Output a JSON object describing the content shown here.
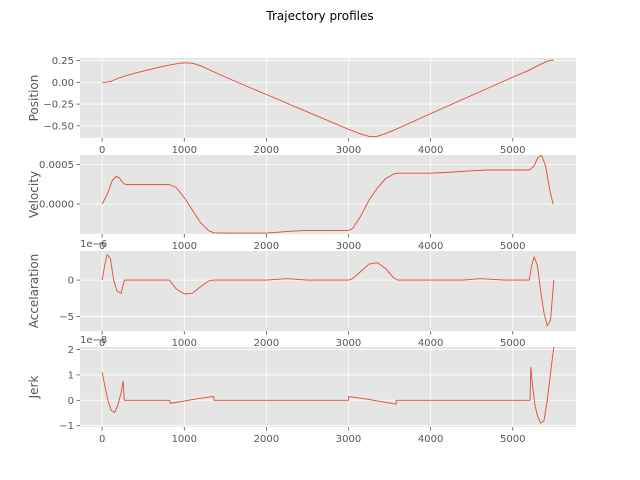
{
  "figure": {
    "title": "Trajectory profiles",
    "line_color": "#e24a33",
    "panel_background": "#e5e5e5",
    "grid_color": "#ffffff",
    "grid": true
  },
  "chart_data": [
    {
      "type": "line",
      "ylabel": "Position",
      "offset_label": "",
      "xlim": [
        -270,
        5770
      ],
      "ylim": [
        -0.64,
        0.28
      ],
      "xticks": [
        0,
        1000,
        2000,
        3000,
        4000,
        5000
      ],
      "xtick_labels": [
        "0",
        "1000",
        "2000",
        "3000",
        "4000",
        "5000"
      ],
      "yticks": [
        0.25,
        0.0,
        -0.25,
        -0.5
      ],
      "ytick_labels": [
        "0.25",
        "0.00",
        "−0.25",
        "−0.50"
      ],
      "series": [
        {
          "x": [
            0,
            50,
            100,
            200,
            300,
            500,
            700,
            850,
            950,
            1000,
            1050,
            1120,
            1200,
            1350,
            1600,
            2000,
            2500,
            3000,
            3150,
            3250,
            3300,
            3350,
            3450,
            3600,
            4000,
            4500,
            5000,
            5200,
            5300,
            5400,
            5450,
            5500
          ],
          "y": [
            0.0,
            0.002,
            0.01,
            0.05,
            0.08,
            0.13,
            0.175,
            0.205,
            0.22,
            0.224,
            0.225,
            0.215,
            0.19,
            0.125,
            0.02,
            -0.14,
            -0.34,
            -0.54,
            -0.595,
            -0.62,
            -0.625,
            -0.62,
            -0.59,
            -0.53,
            -0.36,
            -0.15,
            0.06,
            0.14,
            0.19,
            0.235,
            0.252,
            0.255
          ]
        }
      ]
    },
    {
      "type": "line",
      "ylabel": "Velocity",
      "offset_label": "",
      "xlim": [
        -270,
        5770
      ],
      "ylim": [
        -0.00038,
        0.00062
      ],
      "xticks": [
        0,
        1000,
        2000,
        3000,
        4000,
        5000
      ],
      "xtick_labels": [
        "0",
        "1000",
        "2000",
        "3000",
        "4000",
        "5000"
      ],
      "yticks": [
        0.0005,
        0.0
      ],
      "ytick_labels": [
        "0.0005",
        "0.0000"
      ],
      "series": [
        {
          "x": [
            0,
            60,
            120,
            170,
            210,
            250,
            290,
            350,
            500,
            700,
            820,
            900,
            1000,
            1100,
            1200,
            1300,
            1360,
            1500,
            2000,
            2300,
            2500,
            3000,
            3050,
            3150,
            3250,
            3350,
            3450,
            3550,
            3600,
            3800,
            4000,
            4200,
            4500,
            4700,
            5000,
            5200,
            5260,
            5300,
            5350,
            5400,
            5450,
            5490
          ],
          "y": [
            0.0,
            0.00012,
            0.00029,
            0.00035,
            0.00033,
            0.00027,
            0.000245,
            0.000245,
            0.000245,
            0.000245,
            0.000245,
            0.00021,
            8e-05,
            -8e-05,
            -0.00024,
            -0.00034,
            -0.000365,
            -0.000368,
            -0.000368,
            -0.000345,
            -0.000335,
            -0.000335,
            -0.00031,
            -0.00015,
            5e-05,
            0.0002,
            0.00032,
            0.00038,
            0.00039,
            0.00039,
            0.00039,
            0.0004,
            0.00042,
            0.00043,
            0.00043,
            0.00043,
            0.00048,
            0.00058,
            0.00062,
            0.00048,
            0.00018,
            0.0
          ]
        }
      ]
    },
    {
      "type": "line",
      "ylabel": "Accelaration",
      "offset_label": "1e−6",
      "xlim": [
        -270,
        5770
      ],
      "ylim": [
        -7.0,
        4.0
      ],
      "xticks": [
        0,
        1000,
        2000,
        3000,
        4000,
        5000
      ],
      "xtick_labels": [
        "0",
        "1000",
        "2000",
        "3000",
        "4000",
        "5000"
      ],
      "yticks": [
        0,
        -5
      ],
      "ytick_labels": [
        "0",
        "−5"
      ],
      "series": [
        {
          "x": [
            0,
            30,
            60,
            100,
            140,
            180,
            230,
            270,
            320,
            500,
            700,
            820,
            900,
            1000,
            1100,
            1200,
            1300,
            1360,
            1500,
            2000,
            2250,
            2500,
            2800,
            3000,
            3050,
            3150,
            3250,
            3350,
            3450,
            3550,
            3600,
            4000,
            4400,
            4600,
            4900,
            5200,
            5230,
            5260,
            5300,
            5340,
            5380,
            5420,
            5460,
            5500
          ],
          "y": [
            0.0,
            2.0,
            3.5,
            3.0,
            0.0,
            -1.5,
            -1.8,
            0.0,
            0.0,
            0.0,
            0.0,
            0.0,
            -1.2,
            -1.9,
            -1.8,
            -0.9,
            -0.1,
            0.0,
            0.0,
            0.0,
            0.2,
            0.0,
            0.0,
            0.0,
            0.2,
            1.2,
            2.2,
            2.4,
            1.6,
            0.3,
            0.0,
            0.0,
            0.0,
            0.2,
            0.0,
            0.0,
            2.0,
            3.2,
            2.0,
            -1.5,
            -4.5,
            -6.3,
            -5.5,
            0.0
          ]
        }
      ]
    },
    {
      "type": "line",
      "ylabel": "Jerk",
      "offset_label": "1e−8",
      "xlim": [
        -270,
        5770
      ],
      "ylim": [
        -1.05,
        2.1
      ],
      "xticks": [
        0,
        1000,
        2000,
        3000,
        4000,
        5000
      ],
      "xtick_labels": [
        "0",
        "1000",
        "2000",
        "3000",
        "4000",
        "5000"
      ],
      "yticks": [
        2,
        1,
        0,
        -1
      ],
      "ytick_labels": [
        "2",
        "1",
        "0",
        "−1"
      ],
      "series": [
        {
          "x": [
            0,
            30,
            70,
            110,
            150,
            190,
            230,
            255,
            270,
            280,
            500,
            800,
            825,
            826,
            900,
            1100,
            1300,
            1360,
            1361,
            1600,
            2000,
            2500,
            3000,
            3001,
            3200,
            3400,
            3580,
            3581,
            4000,
            4500,
            5000,
            5210,
            5220,
            5240,
            5270,
            5300,
            5340,
            5380,
            5420,
            5450,
            5480,
            5500
          ],
          "y": [
            1.1,
            0.6,
            0.0,
            -0.4,
            -0.48,
            -0.2,
            0.3,
            0.75,
            0.0,
            0.0,
            0.0,
            0.0,
            0.0,
            -0.12,
            -0.08,
            0.03,
            0.13,
            0.15,
            0.0,
            0.0,
            0.0,
            0.0,
            0.0,
            0.15,
            0.06,
            -0.05,
            -0.15,
            0.0,
            0.0,
            0.0,
            0.0,
            0.0,
            1.3,
            0.6,
            -0.2,
            -0.6,
            -0.9,
            -0.8,
            0.0,
            0.8,
            1.6,
            2.1
          ]
        }
      ]
    }
  ]
}
